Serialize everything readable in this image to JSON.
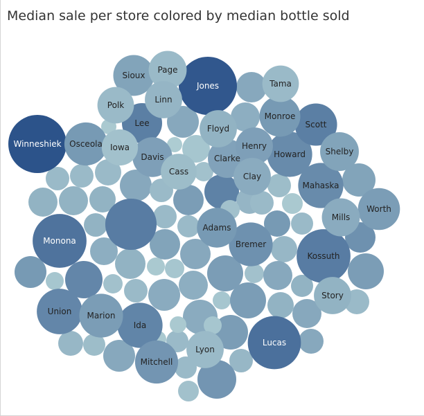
{
  "chart_data": {
    "type": "bubble",
    "title": "Median sale per store colored by median bottle sold",
    "size_measure": "Median sale per store",
    "color_measure": "median bottle sold",
    "bubbles": [
      {
        "label": "Winneshiek",
        "size": 1.0,
        "color": 1.0
      },
      {
        "label": "Jones",
        "size": 1.0,
        "color": 0.97
      },
      {
        "label": "Lucas",
        "size": 0.86,
        "color": 0.8
      },
      {
        "label": "Monona",
        "size": 0.88,
        "color": 0.78
      },
      {
        "label": "Kossuth",
        "size": 0.88,
        "color": 0.72
      },
      {
        "label": "",
        "size": 0.81,
        "color": 0.72
      },
      {
        "label": "Union",
        "size": 0.65,
        "color": 0.65
      },
      {
        "label": "Ida",
        "size": 0.64,
        "color": 0.66
      },
      {
        "label": "Mahaska",
        "size": 0.64,
        "color": 0.62
      },
      {
        "label": "Howard",
        "size": 0.64,
        "color": 0.62
      },
      {
        "label": "Marion",
        "size": 0.6,
        "color": 0.5
      },
      {
        "label": "Bremer",
        "size": 0.6,
        "color": 0.58
      },
      {
        "label": "Osceola",
        "size": 0.58,
        "color": 0.52
      },
      {
        "label": "Mitchell",
        "size": 0.58,
        "color": 0.55
      },
      {
        "label": "Scott",
        "size": 0.56,
        "color": 0.7
      },
      {
        "label": "Worth",
        "size": 0.55,
        "color": 0.5
      },
      {
        "label": "Sioux",
        "size": 0.52,
        "color": 0.45
      },
      {
        "label": "Lee",
        "size": 0.5,
        "color": 0.7
      },
      {
        "label": "Monroe",
        "size": 0.52,
        "color": 0.52
      },
      {
        "label": "Adams",
        "size": 0.49,
        "color": 0.52
      },
      {
        "label": "Davis",
        "size": 0.49,
        "color": 0.48
      },
      {
        "label": "Clarke",
        "size": 0.46,
        "color": 0.46
      },
      {
        "label": "Shelby",
        "size": 0.46,
        "color": 0.45
      },
      {
        "label": "Mills",
        "size": 0.44,
        "color": 0.4
      },
      {
        "label": "Page",
        "size": 0.44,
        "color": 0.3
      },
      {
        "label": "Linn",
        "size": 0.42,
        "color": 0.33
      },
      {
        "label": "Floyd",
        "size": 0.42,
        "color": 0.35
      },
      {
        "label": "Story",
        "size": 0.42,
        "color": 0.35
      },
      {
        "label": "Henry",
        "size": 0.42,
        "color": 0.48
      },
      {
        "label": "Clay",
        "size": 0.42,
        "color": 0.4
      },
      {
        "label": "Lyon",
        "size": 0.42,
        "color": 0.3
      },
      {
        "label": "Tama",
        "size": 0.4,
        "color": 0.3
      },
      {
        "label": "Polk",
        "size": 0.4,
        "color": 0.3
      },
      {
        "label": "Iowa",
        "size": 0.39,
        "color": 0.25
      },
      {
        "label": "Cass",
        "size": 0.38,
        "color": 0.28
      }
    ]
  }
}
